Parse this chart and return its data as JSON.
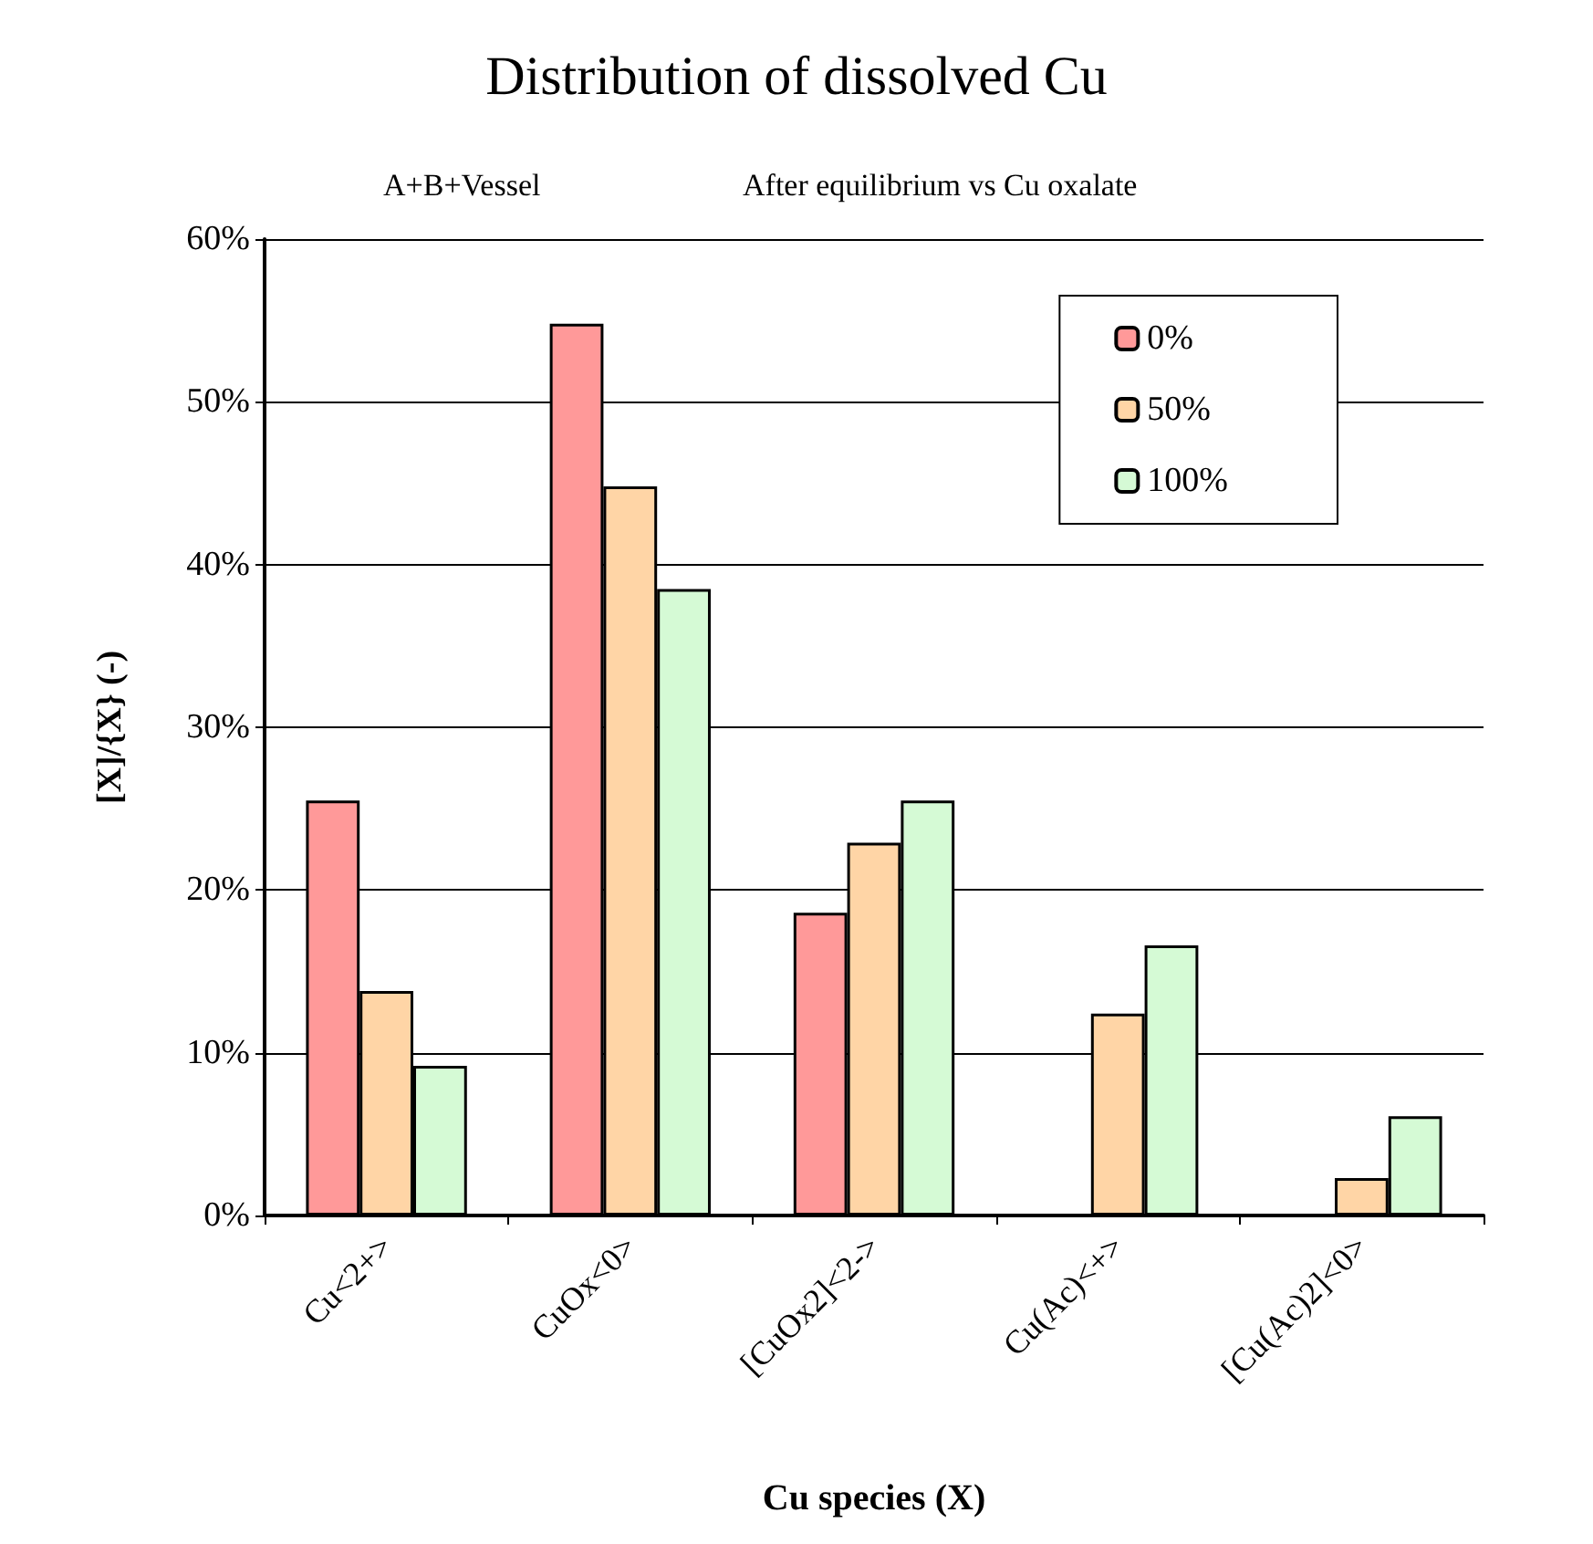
{
  "chart_data": {
    "type": "bar",
    "title": "Distribution of dissolved Cu",
    "subtitle": "A+B+Vessel",
    "annotations": [
      "After equilibrium vs Cu oxalate"
    ],
    "xlabel": "Cu species (X)",
    "ylabel": "[X]/{X} (-)",
    "categories": [
      "Cu<2+>",
      "CuOx<0>",
      "[CuOx2]<2->",
      "Cu(Ac)<+>",
      "[Cu(Ac)2]<0>"
    ],
    "series": [
      {
        "name": "0%",
        "color": "#ff9999",
        "values": [
          25.5,
          54.8,
          18.6,
          null,
          null
        ]
      },
      {
        "name": "50%",
        "color": "#ffd5a6",
        "values": [
          13.8,
          44.8,
          22.9,
          12.4,
          2.3
        ]
      },
      {
        "name": "100%",
        "color": "#d5fad5",
        "values": [
          9.2,
          38.5,
          25.5,
          16.6,
          6.1
        ]
      }
    ],
    "ylim": [
      0,
      60
    ],
    "yticks": [
      {
        "value": 0,
        "label": "0%"
      },
      {
        "value": 10,
        "label": "10%"
      },
      {
        "value": 20,
        "label": "20%"
      },
      {
        "value": 30,
        "label": "30%"
      },
      {
        "value": 40,
        "label": "40%"
      },
      {
        "value": 50,
        "label": "50%"
      },
      {
        "value": 60,
        "label": "60%"
      }
    ],
    "grid": "y",
    "legend": "top right"
  }
}
